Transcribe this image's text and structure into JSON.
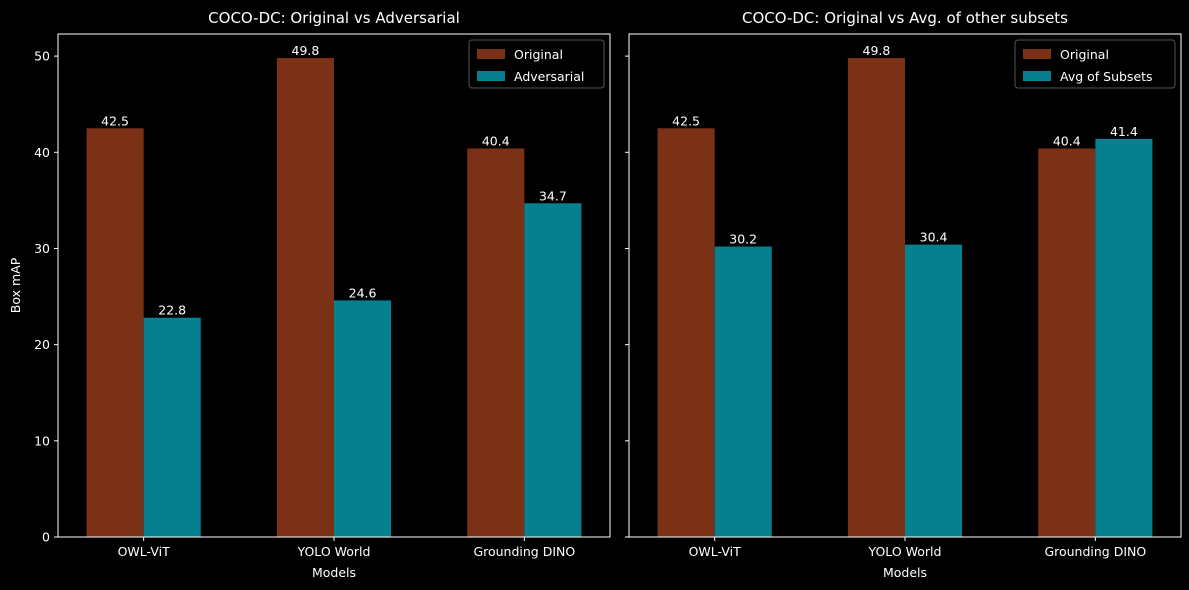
{
  "chart_data": [
    {
      "type": "bar",
      "title": "COCO-DC: Original vs Adversarial",
      "xlabel": "Models",
      "ylabel": "Box mAP",
      "categories": [
        "OWL-ViT",
        "YOLO World",
        "Grounding DINO"
      ],
      "series": [
        {
          "name": "Original",
          "values": [
            42.5,
            49.8,
            40.4
          ],
          "color": "#7a3116"
        },
        {
          "name": "Adversarial",
          "values": [
            22.8,
            24.6,
            34.7
          ],
          "color": "#067f8e"
        }
      ],
      "ylim": [
        0,
        52.3
      ],
      "yticks": [
        0,
        10,
        20,
        30,
        40,
        50
      ],
      "legend_position": "top-right",
      "grid": false
    },
    {
      "type": "bar",
      "title": "COCO-DC: Original vs Avg. of other subsets",
      "xlabel": "Models",
      "ylabel": "",
      "categories": [
        "OWL-ViT",
        "YOLO World",
        "Grounding DINO"
      ],
      "series": [
        {
          "name": "Original",
          "values": [
            42.5,
            49.8,
            40.4
          ],
          "color": "#7a3116"
        },
        {
          "name": "Avg of Subsets",
          "values": [
            30.2,
            30.4,
            41.4
          ],
          "color": "#067f8e"
        }
      ],
      "ylim": [
        0,
        52.3
      ],
      "yticks": [
        0,
        10,
        20,
        30,
        40,
        50
      ],
      "show_ytick_labels": false,
      "legend_position": "top-right",
      "grid": false
    }
  ]
}
